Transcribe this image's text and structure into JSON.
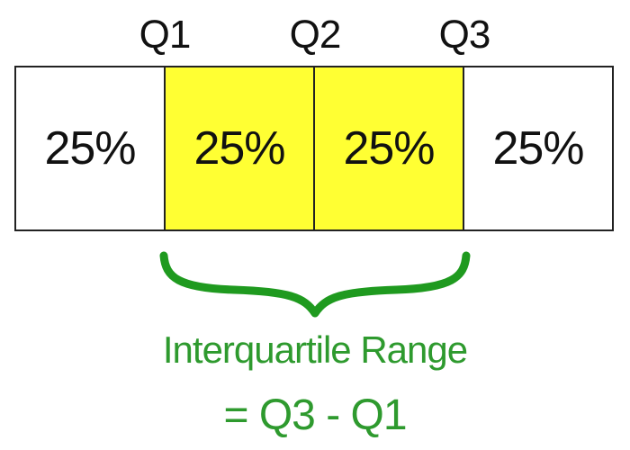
{
  "quartile_labels": [
    "Q1",
    "Q2",
    "Q3"
  ],
  "segments": [
    {
      "label": "25%",
      "highlighted": false
    },
    {
      "label": "25%",
      "highlighted": true
    },
    {
      "label": "25%",
      "highlighted": true
    },
    {
      "label": "25%",
      "highlighted": false
    }
  ],
  "annotation": {
    "title": "Interquartile Range",
    "formula": "= Q3 - Q1"
  },
  "colors": {
    "highlight": "#ffff33",
    "plain": "#ffffff",
    "annotation": "#2e9a2e",
    "brace": "#1f9a1f",
    "text": "#111111",
    "border": "#222222"
  }
}
